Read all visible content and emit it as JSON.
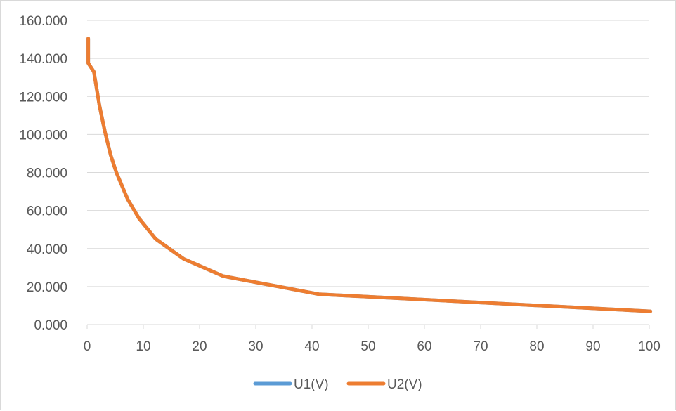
{
  "chart_data": {
    "type": "line",
    "xlim": [
      0,
      100
    ],
    "ylim": [
      0,
      160
    ],
    "x_ticks": [
      "0",
      "10",
      "20",
      "30",
      "40",
      "50",
      "60",
      "70",
      "80",
      "90",
      "100"
    ],
    "y_ticks": [
      "0.000",
      "20.000",
      "40.000",
      "60.000",
      "80.000",
      "100.000",
      "120.000",
      "140.000",
      "160.000"
    ],
    "grid": "horizontal",
    "legend_position": "bottom",
    "series": [
      {
        "name": "U1(V)",
        "color": "#5b9bd5",
        "x": [
          0.2,
          0.2,
          1.2,
          2.2,
          3.2,
          4.2,
          5.2,
          7.2,
          9.2,
          12.2,
          17.2,
          24.2,
          41.2,
          100.2
        ],
        "y": [
          150.5,
          137.5,
          133,
          115,
          101,
          89,
          80,
          66,
          56,
          45,
          34.5,
          25.5,
          16,
          7
        ]
      },
      {
        "name": "U2(V)",
        "color": "#ed7d31",
        "x": [
          0.2,
          0.2,
          1.2,
          2.2,
          3.2,
          4.2,
          5.2,
          7.2,
          9.2,
          12.2,
          17.2,
          24.2,
          41.2,
          100.2
        ],
        "y": [
          150.5,
          137.5,
          133,
          115,
          101,
          89,
          80,
          66,
          56,
          45,
          34.5,
          25.5,
          16,
          7
        ]
      }
    ]
  }
}
